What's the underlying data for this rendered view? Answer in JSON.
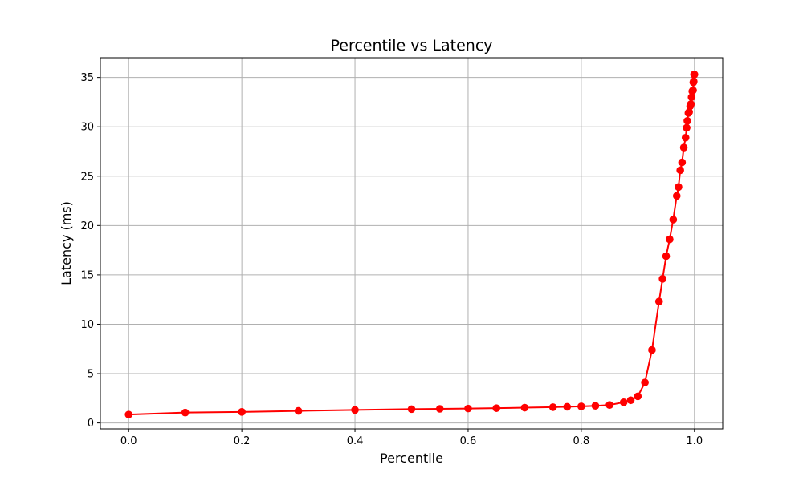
{
  "chart_data": {
    "type": "line",
    "title": "Percentile vs Latency",
    "xlabel": "Percentile",
    "ylabel": "Latency (ms)",
    "xlim": [
      -0.05,
      1.05
    ],
    "ylim": [
      -0.6,
      37.0
    ],
    "xticks": [
      0.0,
      0.2,
      0.4,
      0.6,
      0.8,
      1.0
    ],
    "xtick_labels": [
      "0.0",
      "0.2",
      "0.4",
      "0.6",
      "0.8",
      "1.0"
    ],
    "yticks": [
      0,
      5,
      10,
      15,
      20,
      25,
      30,
      35
    ],
    "ytick_labels": [
      "0",
      "5",
      "10",
      "15",
      "20",
      "25",
      "30",
      "35"
    ],
    "grid": true,
    "series": [
      {
        "color": "#ff0000",
        "marker": "circle",
        "points": [
          [
            0.0,
            0.85
          ],
          [
            0.1,
            1.05
          ],
          [
            0.2,
            1.12
          ],
          [
            0.3,
            1.22
          ],
          [
            0.4,
            1.32
          ],
          [
            0.5,
            1.4
          ],
          [
            0.55,
            1.43
          ],
          [
            0.6,
            1.46
          ],
          [
            0.65,
            1.5
          ],
          [
            0.7,
            1.55
          ],
          [
            0.75,
            1.6
          ],
          [
            0.775,
            1.64
          ],
          [
            0.8,
            1.68
          ],
          [
            0.825,
            1.74
          ],
          [
            0.85,
            1.82
          ],
          [
            0.875,
            2.1
          ],
          [
            0.8875,
            2.3
          ],
          [
            0.9,
            2.7
          ],
          [
            0.9125,
            4.1
          ],
          [
            0.925,
            7.4
          ],
          [
            0.9375,
            12.3
          ],
          [
            0.94375,
            14.6
          ],
          [
            0.95,
            16.9
          ],
          [
            0.95625,
            18.6
          ],
          [
            0.9625,
            20.6
          ],
          [
            0.96875,
            23.0
          ],
          [
            0.971875,
            23.9
          ],
          [
            0.975,
            25.6
          ],
          [
            0.978125,
            26.4
          ],
          [
            0.98125,
            27.9
          ],
          [
            0.984375,
            28.9
          ],
          [
            0.98625,
            29.9
          ],
          [
            0.9875,
            30.6
          ],
          [
            0.989375,
            31.4
          ],
          [
            0.990625,
            31.5
          ],
          [
            0.9925,
            32.1
          ],
          [
            0.99375,
            32.3
          ],
          [
            0.995,
            33.0
          ],
          [
            0.99625,
            33.6
          ],
          [
            0.9975,
            33.7
          ],
          [
            0.998125,
            34.5
          ],
          [
            0.99875,
            34.6
          ],
          [
            0.999375,
            35.3
          ],
          [
            1.0,
            35.3
          ]
        ]
      }
    ]
  }
}
